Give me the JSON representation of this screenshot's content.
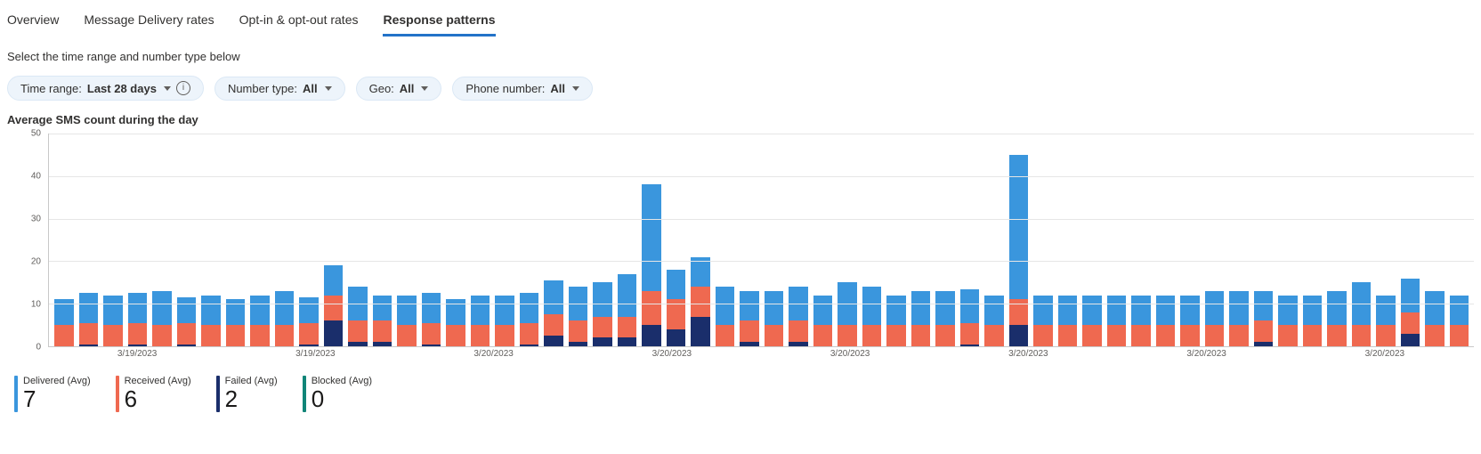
{
  "tabs": [
    {
      "label": "Overview",
      "active": false
    },
    {
      "label": "Message Delivery rates",
      "active": false
    },
    {
      "label": "Opt-in & opt-out rates",
      "active": false
    },
    {
      "label": "Response patterns",
      "active": true
    }
  ],
  "subhead": "Select the time range and number type below",
  "filters": {
    "time_range": {
      "label": "Time range:",
      "value": "Last 28 days",
      "info": true
    },
    "number_type": {
      "label": "Number type:",
      "value": "All"
    },
    "geo": {
      "label": "Geo:",
      "value": "All"
    },
    "phone": {
      "label": "Phone number:",
      "value": "All"
    }
  },
  "chart": {
    "title": "Average SMS count during the day",
    "type": "stacked-bar",
    "y_max": 50,
    "y_ticks": [
      0,
      10,
      20,
      30,
      40,
      50
    ],
    "grid_color": "#e6e6e6",
    "axis_color": "#c8c8c8",
    "bg_color": "#ffffff",
    "series": [
      {
        "key": "blocked",
        "label": "Blocked (Avg)",
        "color": "#118578"
      },
      {
        "key": "failed",
        "label": "Failed (Avg)",
        "color": "#1a2e6b"
      },
      {
        "key": "received",
        "label": "Received (Avg)",
        "color": "#ef6950"
      },
      {
        "key": "delivered",
        "label": "Delivered (Avg)",
        "color": "#3a96dd"
      }
    ],
    "x_tick_labels": [
      "3/19/2023",
      "3/19/2023",
      "3/20/2023",
      "3/20/2023",
      "3/20/2023",
      "3/20/2023",
      "3/20/2023",
      "3/20/2023"
    ],
    "data": [
      {
        "blocked": 0,
        "failed": 0,
        "received": 5,
        "delivered": 6
      },
      {
        "blocked": 0,
        "failed": 0.5,
        "received": 5,
        "delivered": 7
      },
      {
        "blocked": 0,
        "failed": 0,
        "received": 5,
        "delivered": 7
      },
      {
        "blocked": 0,
        "failed": 0.5,
        "received": 5,
        "delivered": 7
      },
      {
        "blocked": 0,
        "failed": 0,
        "received": 5,
        "delivered": 8
      },
      {
        "blocked": 0,
        "failed": 0.5,
        "received": 5,
        "delivered": 6
      },
      {
        "blocked": 0,
        "failed": 0,
        "received": 5,
        "delivered": 7
      },
      {
        "blocked": 0,
        "failed": 0,
        "received": 5,
        "delivered": 6
      },
      {
        "blocked": 0,
        "failed": 0,
        "received": 5,
        "delivered": 7
      },
      {
        "blocked": 0,
        "failed": 0,
        "received": 5,
        "delivered": 8
      },
      {
        "blocked": 0,
        "failed": 0.5,
        "received": 5,
        "delivered": 6
      },
      {
        "blocked": 0,
        "failed": 6,
        "received": 6,
        "delivered": 7
      },
      {
        "blocked": 0,
        "failed": 1,
        "received": 5,
        "delivered": 8
      },
      {
        "blocked": 0,
        "failed": 1,
        "received": 5,
        "delivered": 6
      },
      {
        "blocked": 0,
        "failed": 0,
        "received": 5,
        "delivered": 7
      },
      {
        "blocked": 0,
        "failed": 0.5,
        "received": 5,
        "delivered": 7
      },
      {
        "blocked": 0,
        "failed": 0,
        "received": 5,
        "delivered": 6
      },
      {
        "blocked": 0,
        "failed": 0,
        "received": 5,
        "delivered": 7
      },
      {
        "blocked": 0,
        "failed": 0,
        "received": 5,
        "delivered": 7
      },
      {
        "blocked": 0,
        "failed": 0.5,
        "received": 5,
        "delivered": 7
      },
      {
        "blocked": 0,
        "failed": 2.5,
        "received": 5,
        "delivered": 8
      },
      {
        "blocked": 0,
        "failed": 1,
        "received": 5,
        "delivered": 8
      },
      {
        "blocked": 0,
        "failed": 2,
        "received": 5,
        "delivered": 8
      },
      {
        "blocked": 0,
        "failed": 2,
        "received": 5,
        "delivered": 10
      },
      {
        "blocked": 0,
        "failed": 5,
        "received": 8,
        "delivered": 25
      },
      {
        "blocked": 0,
        "failed": 4,
        "received": 7,
        "delivered": 7
      },
      {
        "blocked": 0,
        "failed": 7,
        "received": 7,
        "delivered": 7
      },
      {
        "blocked": 0,
        "failed": 0,
        "received": 5,
        "delivered": 9
      },
      {
        "blocked": 0,
        "failed": 1,
        "received": 5,
        "delivered": 7
      },
      {
        "blocked": 0,
        "failed": 0,
        "received": 5,
        "delivered": 8
      },
      {
        "blocked": 0,
        "failed": 1,
        "received": 5,
        "delivered": 8
      },
      {
        "blocked": 0,
        "failed": 0,
        "received": 5,
        "delivered": 7
      },
      {
        "blocked": 0,
        "failed": 0,
        "received": 5,
        "delivered": 10
      },
      {
        "blocked": 0,
        "failed": 0,
        "received": 5,
        "delivered": 9
      },
      {
        "blocked": 0,
        "failed": 0,
        "received": 5,
        "delivered": 7
      },
      {
        "blocked": 0,
        "failed": 0,
        "received": 5,
        "delivered": 8
      },
      {
        "blocked": 0,
        "failed": 0,
        "received": 5,
        "delivered": 8
      },
      {
        "blocked": 0,
        "failed": 0.5,
        "received": 5,
        "delivered": 8
      },
      {
        "blocked": 0,
        "failed": 0,
        "received": 5,
        "delivered": 7
      },
      {
        "blocked": 0,
        "failed": 5,
        "received": 6,
        "delivered": 34
      },
      {
        "blocked": 0,
        "failed": 0,
        "received": 5,
        "delivered": 7
      },
      {
        "blocked": 0,
        "failed": 0,
        "received": 5,
        "delivered": 7
      },
      {
        "blocked": 0,
        "failed": 0,
        "received": 5,
        "delivered": 7
      },
      {
        "blocked": 0,
        "failed": 0,
        "received": 5,
        "delivered": 7
      },
      {
        "blocked": 0,
        "failed": 0,
        "received": 5,
        "delivered": 7
      },
      {
        "blocked": 0,
        "failed": 0,
        "received": 5,
        "delivered": 7
      },
      {
        "blocked": 0,
        "failed": 0,
        "received": 5,
        "delivered": 7
      },
      {
        "blocked": 0,
        "failed": 0,
        "received": 5,
        "delivered": 8
      },
      {
        "blocked": 0,
        "failed": 0,
        "received": 5,
        "delivered": 8
      },
      {
        "blocked": 0,
        "failed": 1,
        "received": 5,
        "delivered": 7
      },
      {
        "blocked": 0,
        "failed": 0,
        "received": 5,
        "delivered": 7
      },
      {
        "blocked": 0,
        "failed": 0,
        "received": 5,
        "delivered": 7
      },
      {
        "blocked": 0,
        "failed": 0,
        "received": 5,
        "delivered": 8
      },
      {
        "blocked": 0,
        "failed": 0,
        "received": 5,
        "delivered": 10
      },
      {
        "blocked": 0,
        "failed": 0,
        "received": 5,
        "delivered": 7
      },
      {
        "blocked": 0,
        "failed": 3,
        "received": 5,
        "delivered": 8
      },
      {
        "blocked": 0,
        "failed": 0,
        "received": 5,
        "delivered": 8
      },
      {
        "blocked": 0,
        "failed": 0,
        "received": 5,
        "delivered": 7
      }
    ]
  },
  "summary": [
    {
      "label": "Delivered (Avg)",
      "value": "7",
      "color": "#3a96dd"
    },
    {
      "label": "Received (Avg)",
      "value": "6",
      "color": "#ef6950"
    },
    {
      "label": "Failed (Avg)",
      "value": "2",
      "color": "#1a2e6b"
    },
    {
      "label": "Blocked (Avg)",
      "value": "0",
      "color": "#118578"
    }
  ]
}
